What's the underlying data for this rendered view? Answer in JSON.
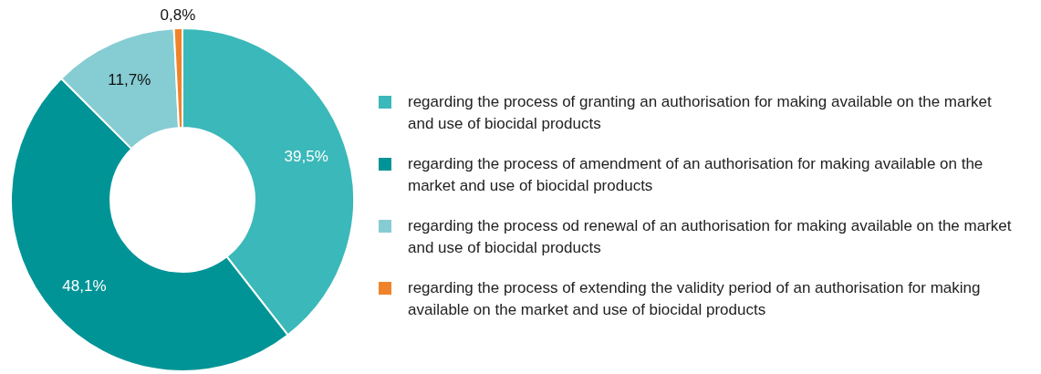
{
  "chart_data": {
    "type": "donut",
    "categories": [
      "regarding the process of granting an authorisation for making available on the market and use of biocidal products",
      "regarding the process of amendment of an authorisation for making available on the market and use of biocidal products",
      "regarding the process od renewal of an authorisation for making available on the market and use of biocidal products",
      "regarding the process of extending the validity period of an authorisation for making available on the market and use of biocidal products"
    ],
    "values": [
      39.5,
      48.1,
      11.7,
      0.8
    ],
    "colors": [
      "#3bb8b9",
      "#009496",
      "#86ccd3",
      "#f0832a"
    ],
    "value_labels": [
      "39,5%",
      "48,1%",
      "11,7%",
      "0,8%"
    ],
    "legend": "right"
  }
}
